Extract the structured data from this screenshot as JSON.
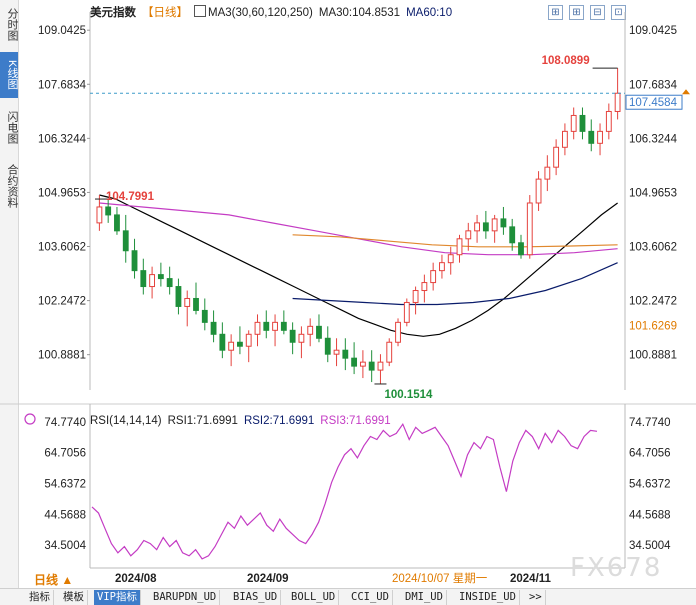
{
  "side_tabs": [
    {
      "label": "分时图",
      "active": false
    },
    {
      "label": "K线图",
      "active": true
    },
    {
      "label": "闪电图",
      "active": false
    },
    {
      "label": "合约资料",
      "active": false
    }
  ],
  "legend": {
    "name": "美元指数",
    "period": "【日线】",
    "ma_label": "MA3(30,60,120,250)",
    "ma30": "MA30:104.8531",
    "ma60": "MA60:10"
  },
  "rsi_legend": {
    "label": "RSI(14,14,14)",
    "rsi1": "RSI1:71.6991",
    "rsi2": "RSI2:71.6991",
    "rsi3": "RSI3:71.6991"
  },
  "markers": {
    "high_label": "108.0899",
    "high_left_label": "104.7991",
    "low_label": "100.1514",
    "current_price": "107.4584",
    "side_price": "101.6269"
  },
  "bottom": {
    "period_label": "日线 ▲",
    "tabs": [
      "指标",
      "模板",
      "VIP指标",
      "BARUPDN_UD",
      "BIAS_UD",
      "BOLL_UD",
      "CCI_UD",
      "DMI_UD",
      "INSIDE_UD",
      ">>"
    ],
    "active_tab": "VIP指标"
  },
  "watermark": "FX678",
  "colors": {
    "up": "#e5423d",
    "down": "#1e8f3a",
    "ma30": "#000000",
    "ma60": "#0a1c6b",
    "ma120": "#c43cc4",
    "ma250": "#e0882e",
    "rsi": "#c43cc4",
    "accent": "#3d7cc9"
  },
  "chart_data": [
    {
      "type": "candlestick",
      "title": "",
      "ylim": [
        100.0,
        109.5
      ],
      "y_ticks": [
        "109.0425",
        "107.6834",
        "106.3244",
        "104.9653",
        "103.6062",
        "102.2472",
        "100.8881"
      ],
      "x_ticks": [
        "2024/08",
        "2024/09",
        "2024/10/07 星期一",
        "2024/11"
      ],
      "candles": [
        [
          104.2,
          104.9,
          104.0,
          104.6
        ],
        [
          104.6,
          104.8,
          104.2,
          104.4
        ],
        [
          104.4,
          104.6,
          103.9,
          104.0
        ],
        [
          104.0,
          104.4,
          103.2,
          103.5
        ],
        [
          103.5,
          103.8,
          102.8,
          103.0
        ],
        [
          103.0,
          103.3,
          102.4,
          102.6
        ],
        [
          102.6,
          103.1,
          102.3,
          102.9
        ],
        [
          102.9,
          103.2,
          102.6,
          102.8
        ],
        [
          102.8,
          103.1,
          102.4,
          102.6
        ],
        [
          102.6,
          102.8,
          101.9,
          102.1
        ],
        [
          102.1,
          102.5,
          101.6,
          102.3
        ],
        [
          102.3,
          102.7,
          101.9,
          102.0
        ],
        [
          102.0,
          102.3,
          101.5,
          101.7
        ],
        [
          101.7,
          102.0,
          101.2,
          101.4
        ],
        [
          101.4,
          101.7,
          100.8,
          101.0
        ],
        [
          101.0,
          101.4,
          100.6,
          101.2
        ],
        [
          101.2,
          101.6,
          100.9,
          101.1
        ],
        [
          101.1,
          101.5,
          100.7,
          101.4
        ],
        [
          101.4,
          101.9,
          101.1,
          101.7
        ],
        [
          101.7,
          102.0,
          101.3,
          101.5
        ],
        [
          101.5,
          101.9,
          101.1,
          101.7
        ],
        [
          101.7,
          102.0,
          101.4,
          101.5
        ],
        [
          101.5,
          101.7,
          100.9,
          101.2
        ],
        [
          101.2,
          101.6,
          100.8,
          101.4
        ],
        [
          101.4,
          101.8,
          101.1,
          101.6
        ],
        [
          101.6,
          101.9,
          101.2,
          101.3
        ],
        [
          101.3,
          101.6,
          100.7,
          100.9
        ],
        [
          100.9,
          101.3,
          100.6,
          101.0
        ],
        [
          101.0,
          101.3,
          100.5,
          100.8
        ],
        [
          100.8,
          101.2,
          100.4,
          100.6
        ],
        [
          100.6,
          101.0,
          100.3,
          100.7
        ],
        [
          100.7,
          101.0,
          100.2,
          100.5
        ],
        [
          100.5,
          100.9,
          100.15,
          100.7
        ],
        [
          100.7,
          101.3,
          100.6,
          101.2
        ],
        [
          101.2,
          101.8,
          101.1,
          101.7
        ],
        [
          101.7,
          102.3,
          101.6,
          102.2
        ],
        [
          102.2,
          102.6,
          101.9,
          102.5
        ],
        [
          102.5,
          102.9,
          102.2,
          102.7
        ],
        [
          102.7,
          103.2,
          102.5,
          103.0
        ],
        [
          103.0,
          103.4,
          102.8,
          103.2
        ],
        [
          103.2,
          103.6,
          102.9,
          103.4
        ],
        [
          103.4,
          103.9,
          103.2,
          103.8
        ],
        [
          103.8,
          104.2,
          103.5,
          104.0
        ],
        [
          104.0,
          104.4,
          103.7,
          104.2
        ],
        [
          104.2,
          104.5,
          103.8,
          104.0
        ],
        [
          104.0,
          104.4,
          103.7,
          104.3
        ],
        [
          104.3,
          104.6,
          103.9,
          104.1
        ],
        [
          104.1,
          104.3,
          103.5,
          103.7
        ],
        [
          103.7,
          103.9,
          103.3,
          103.4
        ],
        [
          103.4,
          104.9,
          103.3,
          104.7
        ],
        [
          104.7,
          105.5,
          104.5,
          105.3
        ],
        [
          105.3,
          105.9,
          105.0,
          105.6
        ],
        [
          105.6,
          106.3,
          105.4,
          106.1
        ],
        [
          106.1,
          106.7,
          105.9,
          106.5
        ],
        [
          106.5,
          107.1,
          106.3,
          106.9
        ],
        [
          106.9,
          107.1,
          106.3,
          106.5
        ],
        [
          106.5,
          106.8,
          106.0,
          106.2
        ],
        [
          106.2,
          106.7,
          105.9,
          106.5
        ],
        [
          106.5,
          107.2,
          106.3,
          107.0
        ],
        [
          107.0,
          108.0899,
          106.8,
          107.4584
        ]
      ],
      "ma30": [
        104.9,
        104.8,
        104.6,
        104.4,
        104.2,
        104.0,
        103.8,
        103.6,
        103.4,
        103.2,
        103.0,
        102.8,
        102.6,
        102.4,
        102.2,
        102.0,
        101.8,
        101.65,
        101.5,
        101.4,
        101.35,
        101.4,
        101.55,
        101.75,
        102.0,
        102.3,
        102.65,
        103.0,
        103.35,
        103.7,
        104.05,
        104.4,
        104.7
      ],
      "ma60": [
        102.3,
        102.25,
        102.2,
        102.15,
        102.15,
        102.2,
        102.3,
        102.5,
        102.8,
        103.2
      ],
      "ma120": [
        104.7,
        104.6,
        104.5,
        104.4,
        104.2,
        104.0,
        103.8,
        103.6,
        103.45,
        103.4,
        103.4,
        103.45,
        103.55
      ],
      "ma250": [
        103.9,
        103.85,
        103.75,
        103.65,
        103.6,
        103.6,
        103.62,
        103.65
      ],
      "current_price": 107.4584,
      "high": 108.0899,
      "low": 100.1514
    },
    {
      "type": "line",
      "title": "",
      "name": "RSI",
      "ylim": [
        28,
        78
      ],
      "y_ticks": [
        "74.7740",
        "64.7056",
        "54.6372",
        "44.5688",
        "34.5004"
      ],
      "values": [
        47,
        45,
        40,
        35,
        32,
        34,
        31,
        33,
        36,
        35,
        33,
        37,
        34,
        36,
        32,
        31,
        33,
        30,
        31,
        34,
        38,
        42,
        40,
        44,
        41,
        43,
        45,
        41,
        39,
        43,
        40,
        38,
        36,
        35,
        38,
        42,
        48,
        55,
        60,
        64,
        66,
        63,
        67,
        70,
        69,
        72,
        70,
        71,
        74,
        69,
        73,
        71,
        72,
        73,
        70,
        67,
        62,
        57,
        64,
        68,
        66,
        70,
        69,
        60,
        52,
        62,
        68,
        72,
        70,
        66,
        71,
        68,
        72,
        70,
        67,
        66,
        70,
        72,
        71.7
      ]
    }
  ]
}
